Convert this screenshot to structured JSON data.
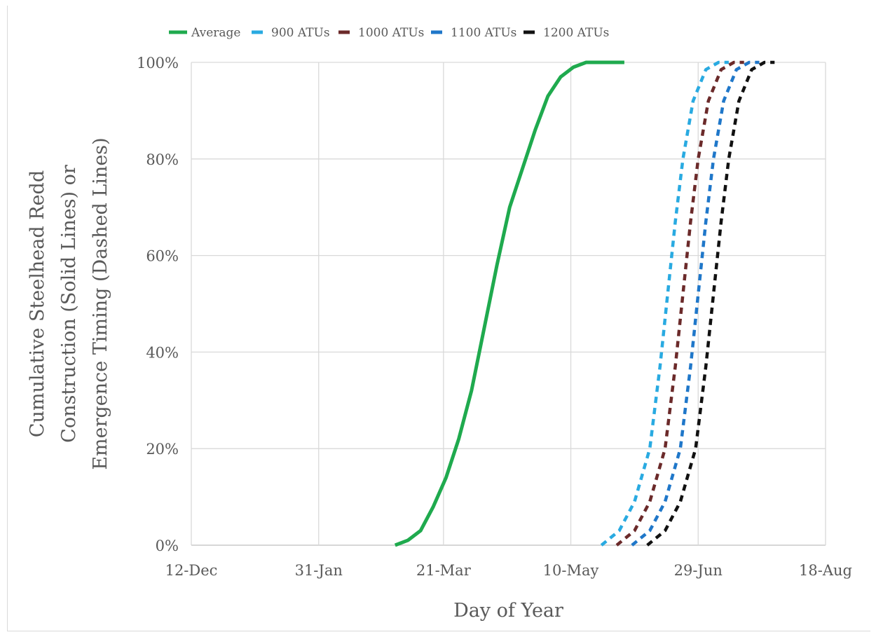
{
  "chart_data": {
    "type": "line",
    "title": "",
    "xlabel": "Day of Year",
    "ylabel_lines": [
      "Cumulative Steelhead Redd",
      "Construction (Solid Lines) or",
      "Emergence Timing (Dashed Lines)"
    ],
    "x_ticks": [
      {
        "label": "12-Dec",
        "day": 0
      },
      {
        "label": "31-Jan",
        "day": 50
      },
      {
        "label": "21-Mar",
        "day": 99
      },
      {
        "label": "10-May",
        "day": 149
      },
      {
        "label": "29-Jun",
        "day": 199
      },
      {
        "label": "18-Aug",
        "day": 249
      }
    ],
    "xlim_days": [
      0,
      249
    ],
    "ylim": [
      0,
      1
    ],
    "y_ticks": [
      {
        "label": "0%",
        "value": 0
      },
      {
        "label": "20%",
        "value": 0.2
      },
      {
        "label": "40%",
        "value": 0.4
      },
      {
        "label": "60%",
        "value": 0.6
      },
      {
        "label": "80%",
        "value": 0.8
      },
      {
        "label": "100%",
        "value": 1.0
      }
    ],
    "grid": true,
    "legend_position": "top",
    "series": [
      {
        "name": "Average",
        "style": "solid",
        "color": "#1faa4e",
        "points": [
          [
            80,
            0.0
          ],
          [
            85,
            0.01
          ],
          [
            90,
            0.03
          ],
          [
            95,
            0.08
          ],
          [
            100,
            0.14
          ],
          [
            105,
            0.22
          ],
          [
            110,
            0.32
          ],
          [
            115,
            0.45
          ],
          [
            120,
            0.58
          ],
          [
            125,
            0.7
          ],
          [
            130,
            0.78
          ],
          [
            135,
            0.86
          ],
          [
            140,
            0.93
          ],
          [
            145,
            0.97
          ],
          [
            150,
            0.99
          ],
          [
            155,
            1.0
          ],
          [
            170,
            1.0
          ]
        ]
      },
      {
        "name": "900 ATUs",
        "style": "dashed",
        "color": "#29aae1",
        "points": [
          [
            161,
            0.0
          ],
          [
            168,
            0.03
          ],
          [
            174,
            0.09
          ],
          [
            180,
            0.2
          ],
          [
            184,
            0.37
          ],
          [
            187,
            0.52
          ],
          [
            190,
            0.67
          ],
          [
            193,
            0.8
          ],
          [
            197,
            0.92
          ],
          [
            202,
            0.985
          ],
          [
            207,
            1.0
          ],
          [
            211,
            1.0
          ]
        ]
      },
      {
        "name": "1000 ATUs",
        "style": "dashed",
        "color": "#6b2a2a",
        "points": [
          [
            167,
            0.0
          ],
          [
            174,
            0.03
          ],
          [
            180,
            0.09
          ],
          [
            186,
            0.2
          ],
          [
            190,
            0.37
          ],
          [
            193,
            0.52
          ],
          [
            196,
            0.67
          ],
          [
            199,
            0.8
          ],
          [
            203,
            0.92
          ],
          [
            208,
            0.985
          ],
          [
            213,
            1.0
          ],
          [
            217,
            1.0
          ]
        ]
      },
      {
        "name": "1100 ATUs",
        "style": "dashed",
        "color": "#1f77c9",
        "points": [
          [
            173,
            0.0
          ],
          [
            180,
            0.03
          ],
          [
            186,
            0.09
          ],
          [
            192,
            0.2
          ],
          [
            196,
            0.37
          ],
          [
            199,
            0.52
          ],
          [
            202,
            0.67
          ],
          [
            205,
            0.8
          ],
          [
            209,
            0.92
          ],
          [
            214,
            0.985
          ],
          [
            219,
            1.0
          ],
          [
            223,
            1.0
          ]
        ]
      },
      {
        "name": "1200 ATUs",
        "style": "dashed",
        "color": "#111111",
        "points": [
          [
            179,
            0.0
          ],
          [
            186,
            0.03
          ],
          [
            192,
            0.09
          ],
          [
            198,
            0.2
          ],
          [
            202,
            0.37
          ],
          [
            205,
            0.52
          ],
          [
            208,
            0.67
          ],
          [
            211,
            0.8
          ],
          [
            215,
            0.92
          ],
          [
            220,
            0.985
          ],
          [
            225,
            1.0
          ],
          [
            229,
            1.0
          ]
        ]
      }
    ]
  }
}
